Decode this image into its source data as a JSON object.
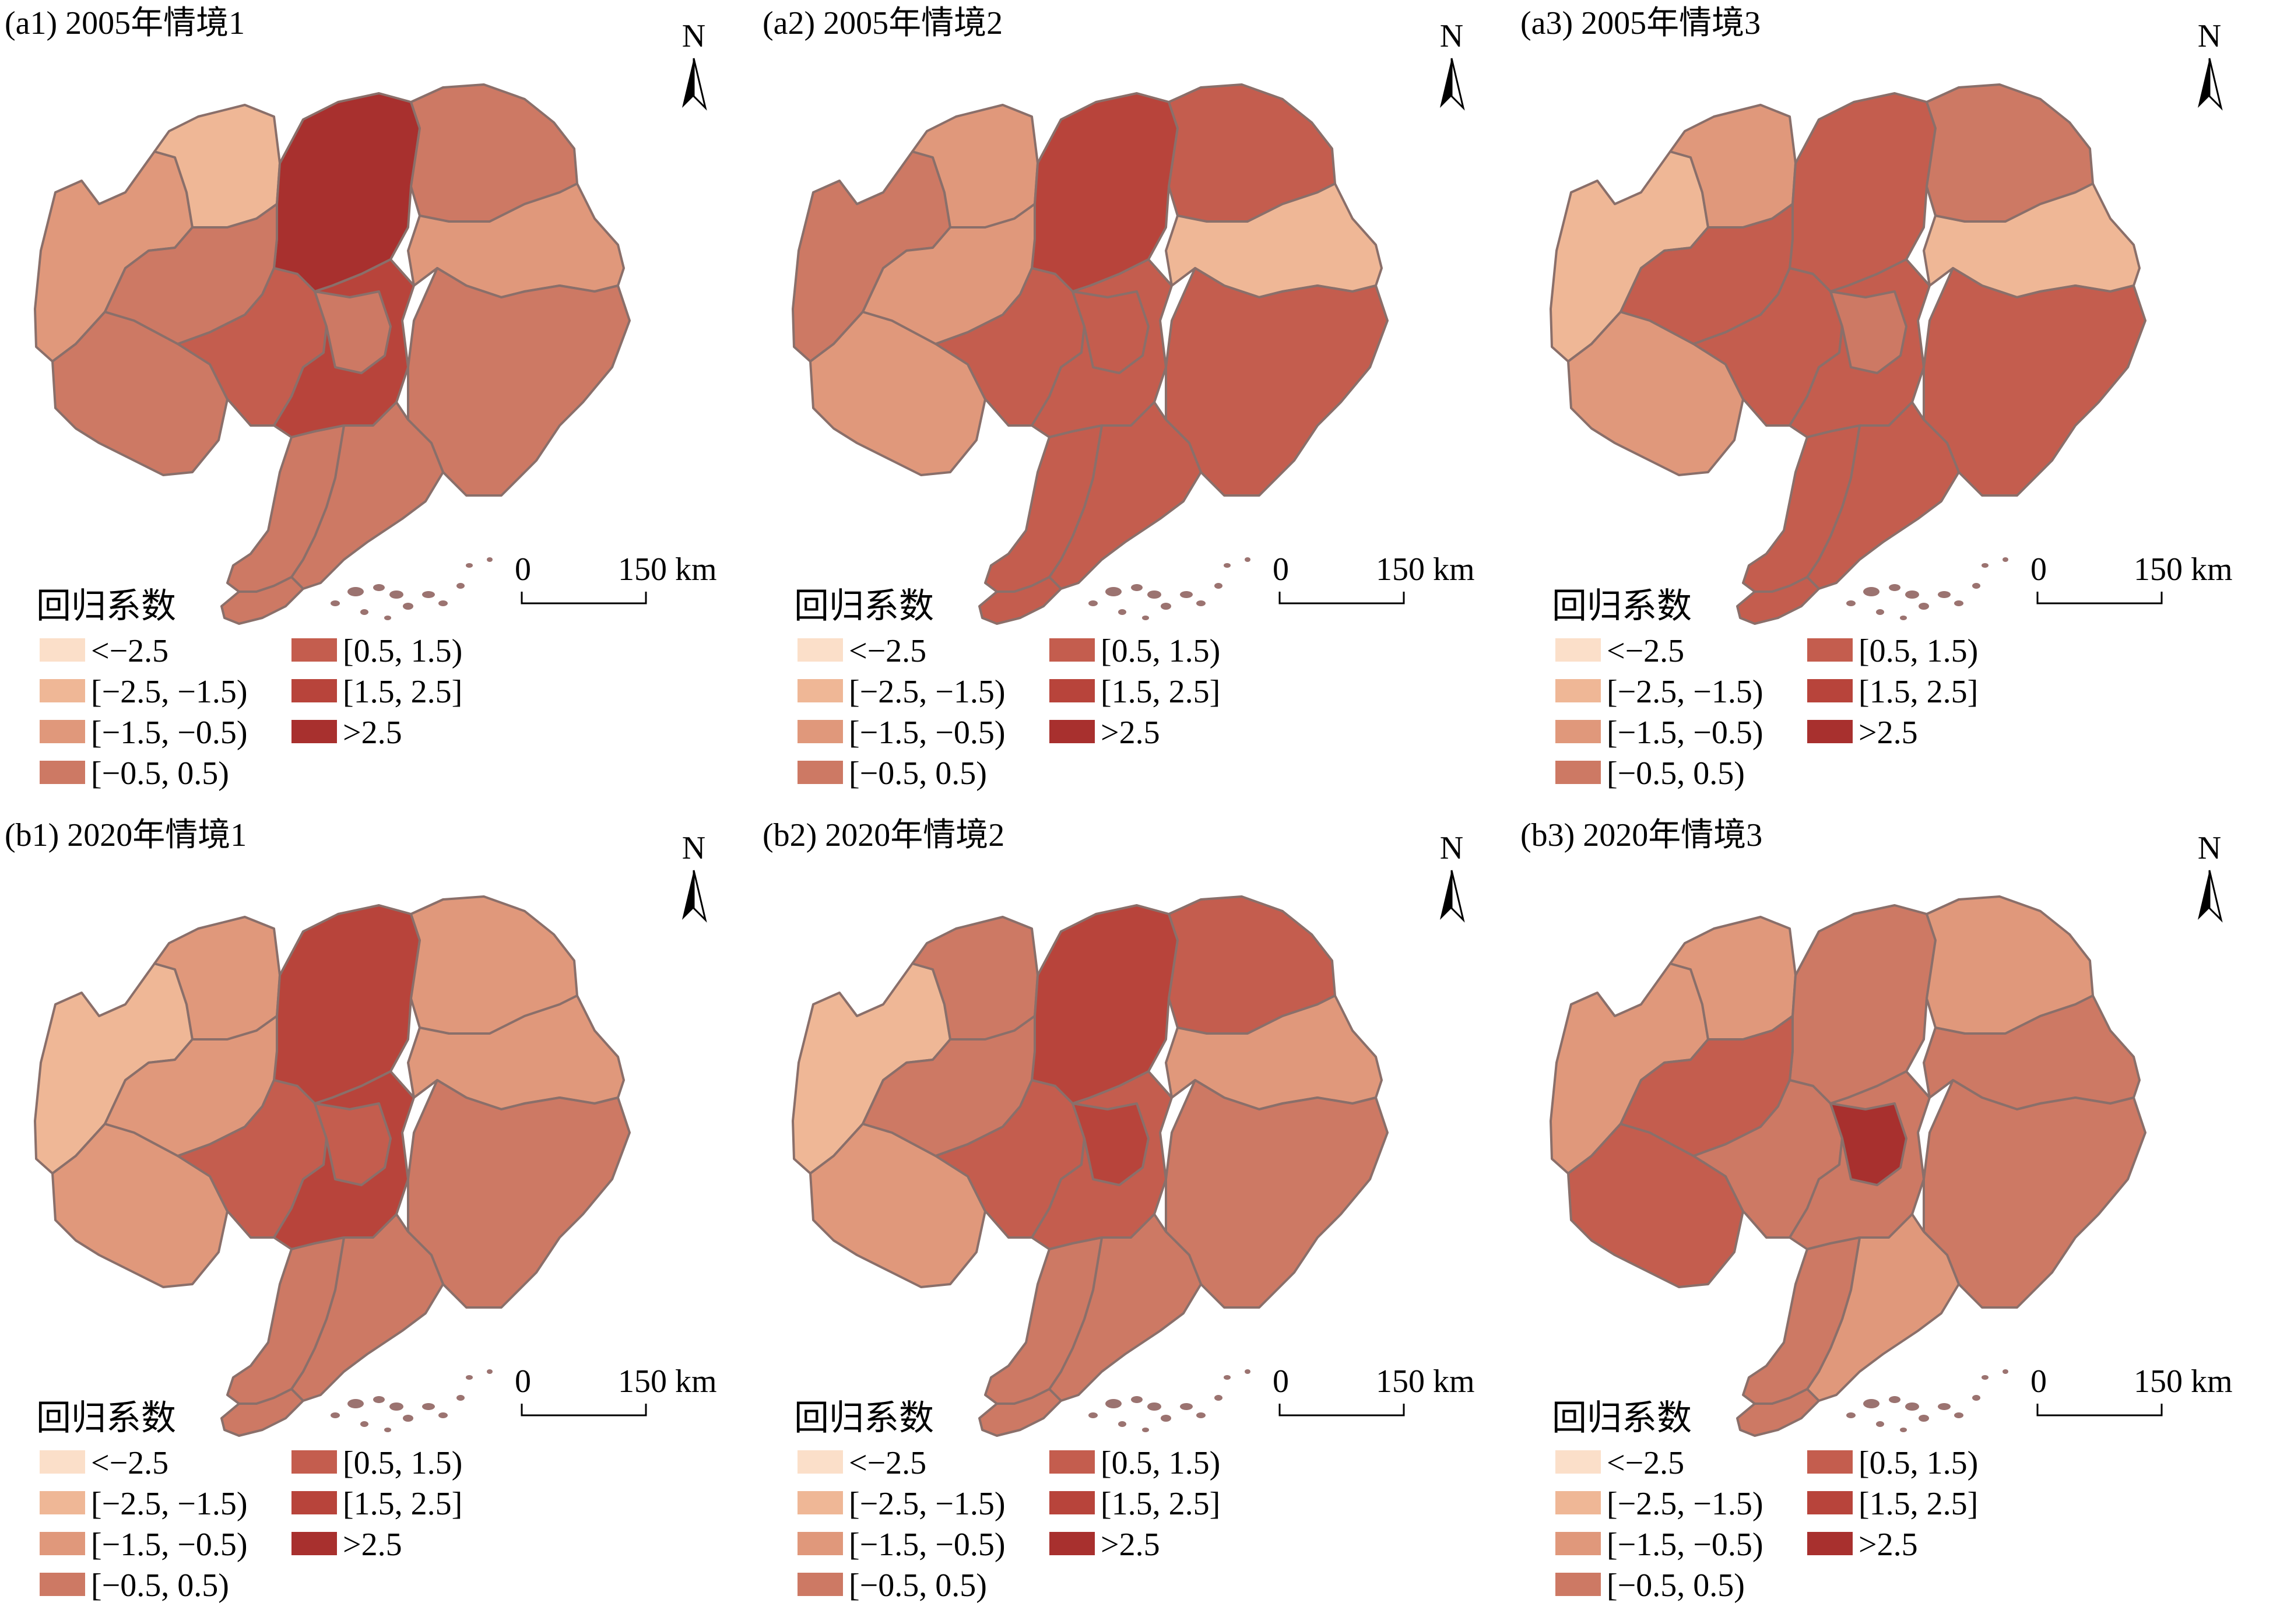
{
  "legend": {
    "title": "回归系数",
    "classes": [
      {
        "label": "<−2.5",
        "color": "#fbdfc9"
      },
      {
        "label": "[−2.5, −1.5)",
        "color": "#efb796"
      },
      {
        "label": "[−1.5, −0.5)",
        "color": "#e0987b"
      },
      {
        "label": "[−0.5, 0.5)",
        "color": "#cd7964"
      },
      {
        "label": "[0.5, 1.5)",
        "color": "#c45d4e"
      },
      {
        "label": "[1.5, 2.5]",
        "color": "#b8443b"
      },
      {
        "label": ">2.5",
        "color": "#a8302e"
      }
    ]
  },
  "scale_bar": {
    "zero": "0",
    "end": "150 km"
  },
  "north_arrow": {
    "label": "N"
  },
  "panels": [
    {
      "id": "a1",
      "title": "(a1) 2005年情境1",
      "classes": [
        2,
        1,
        3,
        6,
        3,
        4,
        5,
        3,
        3,
        2,
        3,
        3,
        3,
        3
      ]
    },
    {
      "id": "a2",
      "title": "(a2) 2005年情境2",
      "classes": [
        3,
        2,
        2,
        5,
        2,
        4,
        4,
        4,
        4,
        1,
        4,
        4,
        4,
        4
      ]
    },
    {
      "id": "a3",
      "title": "(a3) 2005年情境3",
      "classes": [
        1,
        2,
        2,
        4,
        4,
        4,
        4,
        3,
        3,
        1,
        4,
        4,
        4,
        4
      ]
    },
    {
      "id": "b1",
      "title": "(b1) 2020年情境1",
      "classes": [
        1,
        2,
        2,
        5,
        2,
        4,
        5,
        4,
        2,
        2,
        3,
        3,
        3,
        3
      ]
    },
    {
      "id": "b2",
      "title": "(b2) 2020年情境2",
      "classes": [
        1,
        3,
        2,
        5,
        3,
        4,
        4,
        5,
        4,
        2,
        3,
        3,
        3,
        3
      ]
    },
    {
      "id": "b3",
      "title": "(b3) 2020年情境3",
      "classes": [
        2,
        2,
        4,
        3,
        4,
        3,
        3,
        6,
        2,
        3,
        3,
        2,
        3,
        3
      ]
    }
  ]
}
